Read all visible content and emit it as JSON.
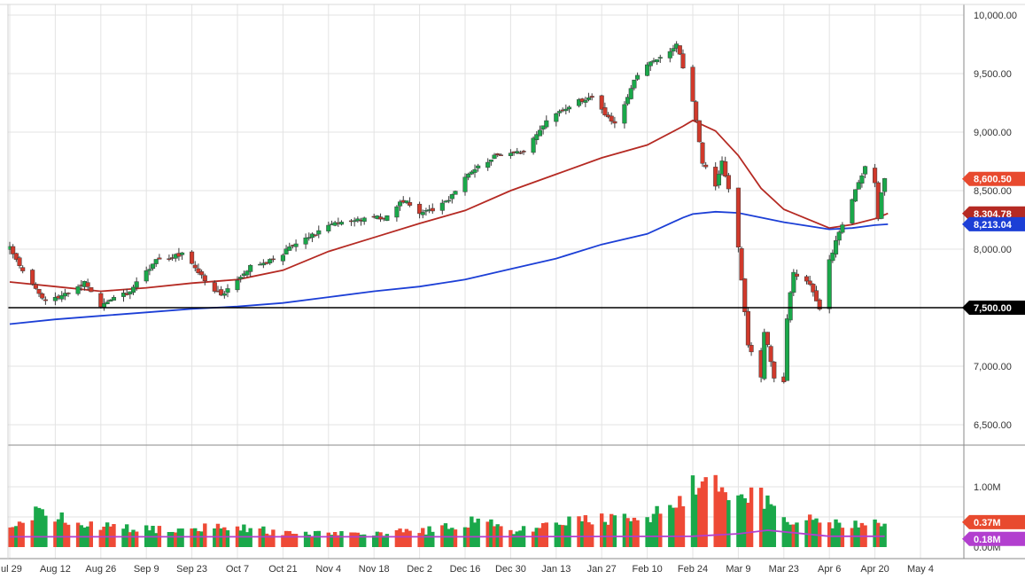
{
  "chart_data": [
    {
      "type": "candlestick",
      "title": "",
      "x_ticks": [
        "ul 29",
        "Aug 12",
        "Aug 26",
        "Sep 9",
        "Sep 23",
        "Oct 7",
        "Oct 21",
        "Nov 4",
        "Nov 18",
        "Dec 2",
        "Dec 16",
        "Dec 30",
        "Jan 13",
        "Jan 27",
        "Feb 10",
        "Feb 24",
        "Mar 9",
        "Mar 23",
        "Apr 6",
        "Apr 20",
        "May 4"
      ],
      "y_ticks": [
        "10,000.00",
        "9,500.00",
        "9,000.00",
        "8,500.00",
        "8,000.00",
        "7,500.00",
        "7,000.00",
        "6,500.00"
      ],
      "ylim": [
        6500,
        10000
      ],
      "grid": true,
      "price_anchors": [
        {
          "date": "Jul 29",
          "close": 8010
        },
        {
          "date": "Aug 5",
          "close": 7700
        },
        {
          "date": "Aug 9",
          "close": 7560
        },
        {
          "date": "Aug 14",
          "close": 7600
        },
        {
          "date": "Aug 21",
          "close": 7720
        },
        {
          "date": "Aug 26",
          "close": 7520
        },
        {
          "date": "Sep 3",
          "close": 7620
        },
        {
          "date": "Sep 12",
          "close": 7900
        },
        {
          "date": "Sep 20",
          "close": 7950
        },
        {
          "date": "Oct 2",
          "close": 7600
        },
        {
          "date": "Oct 4",
          "close": 7650
        },
        {
          "date": "Oct 11",
          "close": 7860
        },
        {
          "date": "Oct 18",
          "close": 7900
        },
        {
          "date": "Oct 25",
          "close": 8050
        },
        {
          "date": "Nov 8",
          "close": 8240
        },
        {
          "date": "Nov 22",
          "close": 8280
        },
        {
          "date": "Nov 27",
          "close": 8420
        },
        {
          "date": "Dec 3",
          "close": 8300
        },
        {
          "date": "Dec 10",
          "close": 8400
        },
        {
          "date": "Dec 19",
          "close": 8700
        },
        {
          "date": "Dec 27",
          "close": 8820
        },
        {
          "date": "Jan 3",
          "close": 8840
        },
        {
          "date": "Jan 10",
          "close": 9100
        },
        {
          "date": "Jan 17",
          "close": 9230
        },
        {
          "date": "Jan 24",
          "close": 9300
        },
        {
          "date": "Jan 31",
          "close": 9060
        },
        {
          "date": "Feb 7",
          "close": 9500
        },
        {
          "date": "Feb 14",
          "close": 9640
        },
        {
          "date": "Feb 19",
          "close": 9750
        },
        {
          "date": "Feb 24",
          "close": 9270
        },
        {
          "date": "Feb 27",
          "close": 8730
        },
        {
          "date": "Mar 2",
          "close": 8550
        },
        {
          "date": "Mar 4",
          "close": 8750
        },
        {
          "date": "Mar 6",
          "close": 8500
        },
        {
          "date": "Mar 9",
          "close": 8000
        },
        {
          "date": "Mar 12",
          "close": 7200
        },
        {
          "date": "Mar 16",
          "close": 6910
        },
        {
          "date": "Mar 17",
          "close": 7300
        },
        {
          "date": "Mar 20",
          "close": 6900
        },
        {
          "date": "Mar 23",
          "close": 6860
        },
        {
          "date": "Mar 24",
          "close": 7420
        },
        {
          "date": "Mar 26",
          "close": 7800
        },
        {
          "date": "Mar 31",
          "close": 7700
        },
        {
          "date": "Apr 3",
          "close": 7500
        },
        {
          "date": "Apr 6",
          "close": 7900
        },
        {
          "date": "Apr 9",
          "close": 8150
        },
        {
          "date": "Apr 14",
          "close": 8500
        },
        {
          "date": "Apr 16",
          "close": 8620
        },
        {
          "date": "Apr 17",
          "close": 8700
        },
        {
          "date": "Apr 20",
          "close": 8560
        },
        {
          "date": "Apr 21",
          "close": 8270
        },
        {
          "date": "Apr 22",
          "close": 8500
        },
        {
          "date": "Apr 23",
          "close": 8600
        }
      ],
      "moving_averages": [
        {
          "name": "",
          "color": "#b52a23",
          "points": [
            [
              "Jul 29",
              7720
            ],
            [
              "Aug 12",
              7680
            ],
            [
              "Aug 26",
              7640
            ],
            [
              "Sep 9",
              7670
            ],
            [
              "Sep 23",
              7710
            ],
            [
              "Oct 7",
              7740
            ],
            [
              "Oct 21",
              7820
            ],
            [
              "Nov 4",
              7980
            ],
            [
              "Nov 18",
              8100
            ],
            [
              "Dec 2",
              8220
            ],
            [
              "Dec 16",
              8330
            ],
            [
              "Dec 30",
              8500
            ],
            [
              "Jan 13",
              8640
            ],
            [
              "Jan 27",
              8780
            ],
            [
              "Feb 10",
              8890
            ],
            [
              "Feb 21",
              9050
            ],
            [
              "Feb 24",
              9100
            ],
            [
              "Mar 2",
              9010
            ],
            [
              "Mar 9",
              8800
            ],
            [
              "Mar 16",
              8520
            ],
            [
              "Mar 23",
              8340
            ],
            [
              "Apr 6",
              8180
            ],
            [
              "Apr 13",
              8210
            ],
            [
              "Apr 20",
              8260
            ],
            [
              "Apr 24",
              8305
            ]
          ]
        },
        {
          "name": "",
          "color": "#1c3fd6",
          "points": [
            [
              "Jul 29",
              7360
            ],
            [
              "Aug 12",
              7400
            ],
            [
              "Aug 26",
              7430
            ],
            [
              "Sep 9",
              7460
            ],
            [
              "Sep 23",
              7490
            ],
            [
              "Oct 7",
              7510
            ],
            [
              "Oct 21",
              7540
            ],
            [
              "Nov 4",
              7590
            ],
            [
              "Nov 18",
              7640
            ],
            [
              "Dec 2",
              7680
            ],
            [
              "Dec 16",
              7740
            ],
            [
              "Dec 30",
              7830
            ],
            [
              "Jan 13",
              7920
            ],
            [
              "Jan 27",
              8040
            ],
            [
              "Feb 10",
              8130
            ],
            [
              "Feb 21",
              8270
            ],
            [
              "Feb 24",
              8300
            ],
            [
              "Mar 2",
              8320
            ],
            [
              "Mar 9",
              8310
            ],
            [
              "Mar 16",
              8270
            ],
            [
              "Mar 23",
              8230
            ],
            [
              "Apr 6",
              8170
            ],
            [
              "Apr 13",
              8180
            ],
            [
              "Apr 20",
              8205
            ],
            [
              "Apr 24",
              8213
            ]
          ]
        }
      ],
      "horizontal_lines": [
        {
          "value": 7500,
          "color": "#000000"
        }
      ],
      "price_labels": [
        {
          "value": 8600.5,
          "text": "8,600.50",
          "color": "#e84a2f"
        },
        {
          "value": 8304.78,
          "text": "8,304.78",
          "color": "#b52a23"
        },
        {
          "value": 8213.04,
          "text": "8,213.04",
          "color": "#1c3fd6"
        },
        {
          "value": 7500,
          "text": "7,500.00",
          "color": "#000000"
        }
      ],
      "colors": {
        "up": "#1aa84a",
        "down": "#d0392b"
      }
    },
    {
      "type": "bar",
      "title": "",
      "ylim": [
        0,
        1.2
      ],
      "y_ticks": [
        "1.00M",
        "0.50M",
        "0.00M"
      ],
      "volume_anchors": [
        {
          "date": "Jul 29",
          "value": 0.28
        },
        {
          "date": "Aug 5",
          "value": 0.55
        },
        {
          "date": "Aug 12",
          "value": 0.48
        },
        {
          "date": "Aug 26",
          "value": 0.36
        },
        {
          "date": "Sep 9",
          "value": 0.3
        },
        {
          "date": "Sep 23",
          "value": 0.33
        },
        {
          "date": "Oct 7",
          "value": 0.33
        },
        {
          "date": "Oct 21",
          "value": 0.24
        },
        {
          "date": "Nov 4",
          "value": 0.22
        },
        {
          "date": "Nov 18",
          "value": 0.24
        },
        {
          "date": "Dec 2",
          "value": 0.26
        },
        {
          "date": "Dec 16",
          "value": 0.36
        },
        {
          "date": "Dec 20",
          "value": 0.55
        },
        {
          "date": "Dec 30",
          "value": 0.24
        },
        {
          "date": "Jan 13",
          "value": 0.4
        },
        {
          "date": "Jan 27",
          "value": 0.45
        },
        {
          "date": "Feb 10",
          "value": 0.46
        },
        {
          "date": "Feb 21",
          "value": 0.82
        },
        {
          "date": "Feb 27",
          "value": 1.28
        },
        {
          "date": "Mar 2",
          "value": 1.12
        },
        {
          "date": "Mar 9",
          "value": 0.95
        },
        {
          "date": "Mar 16",
          "value": 0.85
        },
        {
          "date": "Mar 23",
          "value": 0.5
        },
        {
          "date": "Apr 6",
          "value": 0.38
        },
        {
          "date": "Apr 20",
          "value": 0.38
        },
        {
          "date": "Apr 23",
          "value": 0.37
        }
      ],
      "moving_average": {
        "name": "",
        "color": "#b23fcf",
        "points": [
          [
            "Jul 29",
            0.17
          ],
          [
            "Dec 16",
            0.17
          ],
          [
            "Feb 24",
            0.18
          ],
          [
            "Mar 9",
            0.22
          ],
          [
            "Mar 18",
            0.28
          ],
          [
            "Apr 6",
            0.18
          ],
          [
            "Apr 23",
            0.18
          ]
        ]
      },
      "value_labels": [
        {
          "value": 0.37,
          "text": "0.37M",
          "color": "#e84a2f"
        },
        {
          "value": 0.18,
          "text": "0.18M",
          "color": "#b23fcf"
        }
      ]
    }
  ]
}
